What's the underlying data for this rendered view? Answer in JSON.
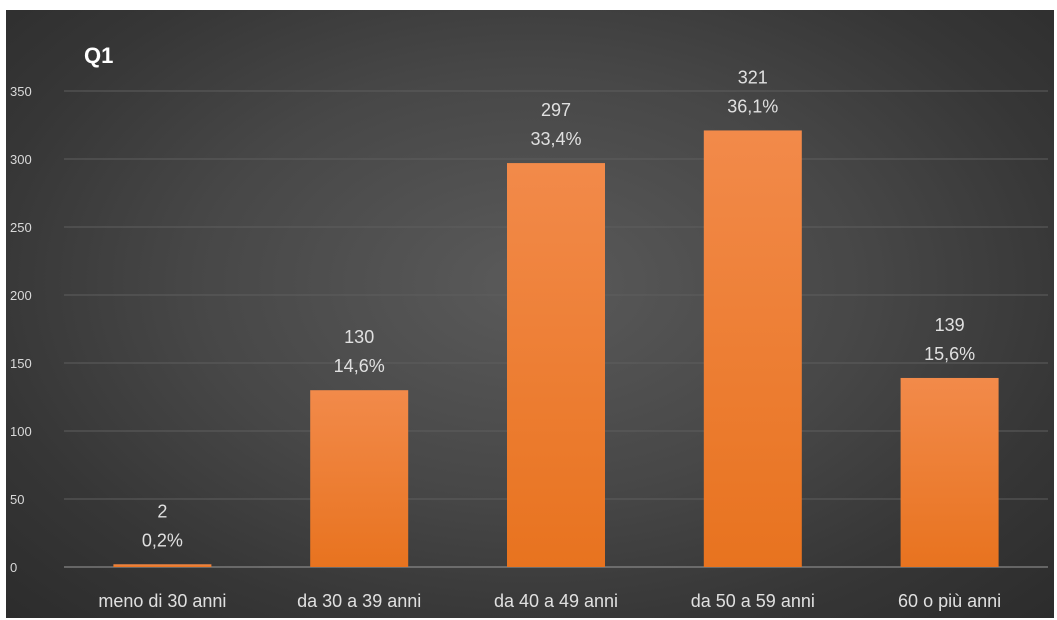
{
  "chart_data": {
    "type": "bar",
    "title": "Q1",
    "xlabel": "",
    "ylabel": "",
    "categories": [
      "meno di 30 anni",
      "da 30 a 39 anni",
      "da 40 a 49 anni",
      "da 50 a 59 anni",
      "60 o più anni"
    ],
    "values": [
      2,
      130,
      297,
      321,
      139
    ],
    "percent_labels": [
      "0,2%",
      "14,6%",
      "33,4%",
      "36,1%",
      "15,6%"
    ],
    "ylim": [
      0,
      350
    ],
    "yticks": [
      0,
      50,
      100,
      150,
      200,
      250,
      300,
      350
    ],
    "grid": true,
    "legend": "none",
    "colors": {
      "bar_top": "#f28a4a",
      "bar_bottom": "#e8731f",
      "background": "#474747",
      "gridline": "#5e5e5e",
      "text": "#e0e0e0"
    }
  }
}
